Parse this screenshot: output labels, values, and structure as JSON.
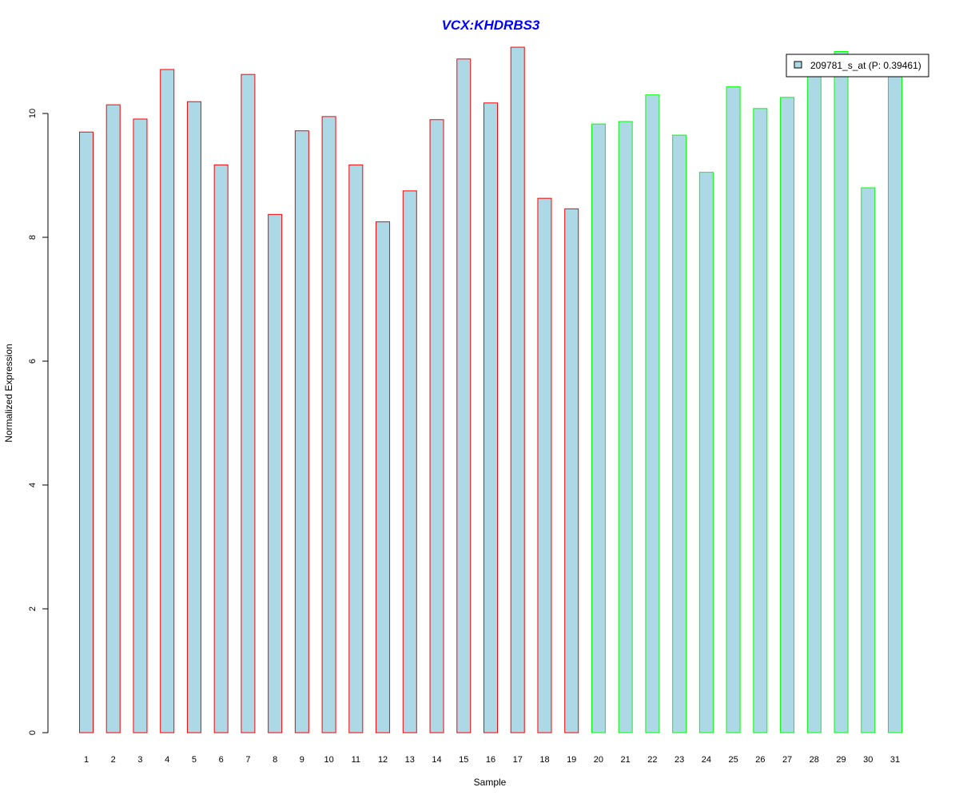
{
  "chart_data": {
    "type": "bar",
    "title": "VCX:KHDRBS3",
    "xlabel": "Sample",
    "ylabel": "Normalized Expression",
    "ylim": [
      0,
      11.1
    ],
    "yticks": [
      0,
      2,
      4,
      6,
      8,
      10
    ],
    "categories": [
      "1",
      "2",
      "3",
      "4",
      "5",
      "6",
      "7",
      "8",
      "9",
      "10",
      "11",
      "12",
      "13",
      "14",
      "15",
      "16",
      "17",
      "18",
      "19",
      "20",
      "21",
      "22",
      "23",
      "24",
      "25",
      "26",
      "27",
      "28",
      "29",
      "30",
      "31"
    ],
    "values": [
      9.7,
      10.14,
      9.91,
      10.71,
      10.19,
      9.17,
      10.63,
      8.37,
      9.72,
      9.95,
      9.17,
      8.25,
      8.75,
      9.9,
      10.88,
      10.17,
      11.07,
      8.63,
      8.46,
      9.83,
      9.87,
      10.3,
      9.65,
      9.05,
      10.43,
      10.08,
      10.26,
      10.9,
      11.0,
      8.8,
      10.8
    ],
    "groups": [
      "red",
      "red",
      "red",
      "red",
      "red",
      "red",
      "red",
      "red",
      "red",
      "red",
      "red",
      "red",
      "red",
      "red",
      "red",
      "red",
      "red",
      "red",
      "red",
      "green",
      "green",
      "green",
      "green",
      "green",
      "green",
      "green",
      "green",
      "green",
      "green",
      "green",
      "green"
    ],
    "legend": {
      "label": "209781_s_at (P: 0.39461)",
      "placement": "top-right"
    },
    "colors": {
      "fill": "#add8e6",
      "red": "#ff0000",
      "green": "#00ff00",
      "title": "#0000ff"
    }
  }
}
